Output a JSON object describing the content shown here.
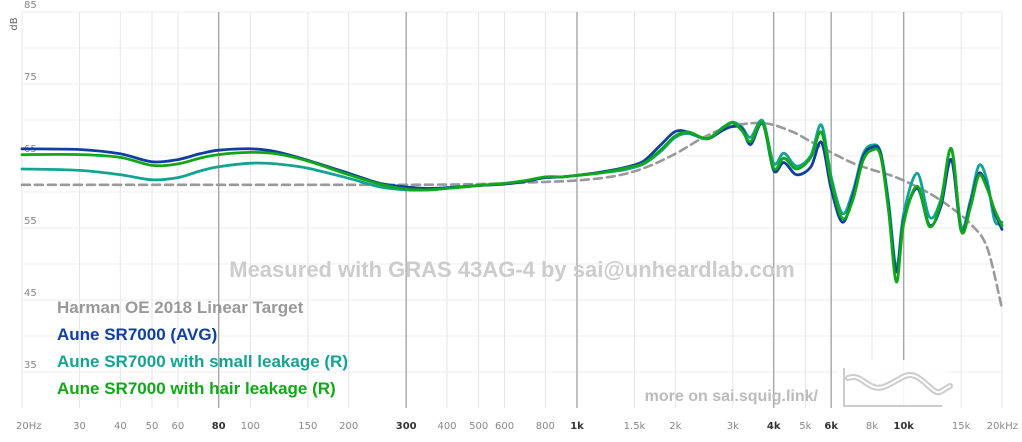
{
  "chart_data": {
    "type": "line",
    "title": "",
    "xlabel": "",
    "ylabel": "dB",
    "x_scale": "log",
    "xlim": [
      20,
      20000
    ],
    "ylim": [
      30,
      85
    ],
    "grid": true,
    "legend_placement": "bottom-left",
    "watermark": "Measured with GRAS 43AG-4 by sai@unheardlab.com",
    "footer": "more on sai.squig.link/",
    "logo_icon": "squiggle-logo-icon",
    "x_ticks": [
      {
        "value": 20,
        "label": "20Hz",
        "major": false
      },
      {
        "value": 30,
        "label": "30",
        "major": false
      },
      {
        "value": 40,
        "label": "40",
        "major": false
      },
      {
        "value": 50,
        "label": "50",
        "major": false
      },
      {
        "value": 60,
        "label": "60",
        "major": false
      },
      {
        "value": 80,
        "label": "80",
        "major": true
      },
      {
        "value": 100,
        "label": "100",
        "major": false
      },
      {
        "value": 150,
        "label": "150",
        "major": false
      },
      {
        "value": 200,
        "label": "200",
        "major": false
      },
      {
        "value": 300,
        "label": "300",
        "major": true
      },
      {
        "value": 400,
        "label": "400",
        "major": false
      },
      {
        "value": 500,
        "label": "500",
        "major": false
      },
      {
        "value": 600,
        "label": "600",
        "major": false
      },
      {
        "value": 800,
        "label": "800",
        "major": false
      },
      {
        "value": 1000,
        "label": "1k",
        "major": true
      },
      {
        "value": 1500,
        "label": "1.5k",
        "major": false
      },
      {
        "value": 2000,
        "label": "2k",
        "major": false
      },
      {
        "value": 3000,
        "label": "3k",
        "major": false
      },
      {
        "value": 4000,
        "label": "4k",
        "major": true
      },
      {
        "value": 5000,
        "label": "5k",
        "major": false
      },
      {
        "value": 6000,
        "label": "6k",
        "major": true
      },
      {
        "value": 8000,
        "label": "8k",
        "major": false
      },
      {
        "value": 10000,
        "label": "10k",
        "major": true
      },
      {
        "value": 15000,
        "label": "15k",
        "major": false
      },
      {
        "value": 20000,
        "label": "20kHz",
        "major": false
      }
    ],
    "y_ticks": [
      {
        "value": 85,
        "label": "85"
      },
      {
        "value": 75,
        "label": "75"
      },
      {
        "value": 65,
        "label": "65"
      },
      {
        "value": 55,
        "label": "55"
      },
      {
        "value": 45,
        "label": "45"
      },
      {
        "value": 35,
        "label": "35"
      }
    ],
    "series": [
      {
        "name": "Harman OE 2018 Linear Target",
        "color": "#999999",
        "dashed": true,
        "points": [
          [
            20,
            61
          ],
          [
            50,
            61
          ],
          [
            100,
            61
          ],
          [
            200,
            61
          ],
          [
            300,
            61
          ],
          [
            500,
            61.1
          ],
          [
            800,
            61.4
          ],
          [
            1000,
            61.6
          ],
          [
            1300,
            62.2
          ],
          [
            1600,
            63.3
          ],
          [
            2000,
            65.3
          ],
          [
            2400,
            67.4
          ],
          [
            2800,
            68.8
          ],
          [
            3200,
            69.4
          ],
          [
            3600,
            69.6
          ],
          [
            4000,
            69.3
          ],
          [
            4600,
            68.3
          ],
          [
            5200,
            67.0
          ],
          [
            6000,
            65.5
          ],
          [
            7000,
            64.0
          ],
          [
            8000,
            63.1
          ],
          [
            9000,
            62.4
          ],
          [
            10000,
            61.6
          ],
          [
            12000,
            59.8
          ],
          [
            14000,
            57.8
          ],
          [
            16000,
            55.6
          ],
          [
            18000,
            52.3
          ],
          [
            20000,
            43.8
          ]
        ]
      },
      {
        "name": "Aune SR7000 (AVG)",
        "color": "#0f3fa1",
        "dashed": false,
        "points": [
          [
            20,
            66.0
          ],
          [
            30,
            65.9
          ],
          [
            40,
            65.3
          ],
          [
            50,
            64.2
          ],
          [
            60,
            64.5
          ],
          [
            70,
            65.3
          ],
          [
            80,
            65.8
          ],
          [
            100,
            66.0
          ],
          [
            120,
            65.6
          ],
          [
            150,
            64.4
          ],
          [
            200,
            62.6
          ],
          [
            250,
            61.2
          ],
          [
            300,
            60.7
          ],
          [
            350,
            60.5
          ],
          [
            400,
            60.6
          ],
          [
            500,
            60.9
          ],
          [
            600,
            61.1
          ],
          [
            700,
            61.5
          ],
          [
            800,
            62.0
          ],
          [
            900,
            62.1
          ],
          [
            1000,
            62.3
          ],
          [
            1200,
            62.8
          ],
          [
            1400,
            63.4
          ],
          [
            1600,
            64.3
          ],
          [
            1800,
            66.5
          ],
          [
            2000,
            68.4
          ],
          [
            2200,
            68.3
          ],
          [
            2500,
            67.4
          ],
          [
            2800,
            68.6
          ],
          [
            3000,
            69.1
          ],
          [
            3200,
            68.8
          ],
          [
            3400,
            66.6
          ],
          [
            3700,
            69.5
          ],
          [
            4000,
            63.0
          ],
          [
            4300,
            64.1
          ],
          [
            4700,
            62.4
          ],
          [
            5200,
            63.5
          ],
          [
            5600,
            66.9
          ],
          [
            6000,
            60.4
          ],
          [
            6500,
            55.8
          ],
          [
            7000,
            59.6
          ],
          [
            7500,
            64.8
          ],
          [
            8000,
            66.2
          ],
          [
            8500,
            65.4
          ],
          [
            9000,
            57.8
          ],
          [
            9500,
            48.9
          ],
          [
            10000,
            56.0
          ],
          [
            11000,
            60.5
          ],
          [
            12000,
            55.4
          ],
          [
            13000,
            58.0
          ],
          [
            14000,
            64.5
          ],
          [
            15000,
            54.6
          ],
          [
            16000,
            58.3
          ],
          [
            17000,
            62.6
          ],
          [
            18000,
            60.7
          ],
          [
            19000,
            57.2
          ],
          [
            20000,
            54.8
          ]
        ]
      },
      {
        "name": "Aune SR7000 with small leakage (R)",
        "color": "#14a393",
        "dashed": false,
        "points": [
          [
            20,
            63.2
          ],
          [
            30,
            63.0
          ],
          [
            40,
            62.4
          ],
          [
            50,
            61.7
          ],
          [
            60,
            62.0
          ],
          [
            70,
            62.9
          ],
          [
            80,
            63.5
          ],
          [
            100,
            64.0
          ],
          [
            120,
            63.9
          ],
          [
            150,
            63.3
          ],
          [
            200,
            61.9
          ],
          [
            250,
            60.7
          ],
          [
            300,
            60.3
          ],
          [
            350,
            60.3
          ],
          [
            400,
            60.5
          ],
          [
            500,
            60.9
          ],
          [
            600,
            61.2
          ],
          [
            700,
            61.6
          ],
          [
            800,
            62.0
          ],
          [
            900,
            62.1
          ],
          [
            1000,
            62.3
          ],
          [
            1200,
            62.7
          ],
          [
            1400,
            63.1
          ],
          [
            1600,
            63.9
          ],
          [
            1800,
            65.6
          ],
          [
            2000,
            67.6
          ],
          [
            2200,
            68.1
          ],
          [
            2500,
            67.4
          ],
          [
            2800,
            69.0
          ],
          [
            3000,
            69.7
          ],
          [
            3200,
            69.0
          ],
          [
            3400,
            67.6
          ],
          [
            3700,
            69.9
          ],
          [
            4000,
            64.0
          ],
          [
            4300,
            65.4
          ],
          [
            4700,
            63.6
          ],
          [
            5200,
            65.1
          ],
          [
            5600,
            69.3
          ],
          [
            6000,
            62.1
          ],
          [
            6500,
            57.0
          ],
          [
            7000,
            60.2
          ],
          [
            7500,
            65.2
          ],
          [
            8000,
            66.5
          ],
          [
            8500,
            65.5
          ],
          [
            9000,
            58.5
          ],
          [
            9500,
            49.5
          ],
          [
            10000,
            57.0
          ],
          [
            11000,
            62.6
          ],
          [
            12000,
            56.5
          ],
          [
            13000,
            59.0
          ],
          [
            14000,
            66.0
          ],
          [
            15000,
            55.2
          ],
          [
            16000,
            58.8
          ],
          [
            17000,
            63.7
          ],
          [
            18000,
            61.6
          ],
          [
            19000,
            56.0
          ],
          [
            20000,
            55.8
          ]
        ]
      },
      {
        "name": "Aune SR7000 with hair leakage (R)",
        "color": "#11a818",
        "dashed": false,
        "points": [
          [
            20,
            65.2
          ],
          [
            30,
            65.2
          ],
          [
            40,
            64.8
          ],
          [
            50,
            63.7
          ],
          [
            60,
            63.9
          ],
          [
            70,
            64.7
          ],
          [
            80,
            65.2
          ],
          [
            100,
            65.5
          ],
          [
            120,
            65.3
          ],
          [
            150,
            64.3
          ],
          [
            200,
            62.4
          ],
          [
            250,
            61.1
          ],
          [
            300,
            60.4
          ],
          [
            350,
            60.3
          ],
          [
            400,
            60.5
          ],
          [
            500,
            60.9
          ],
          [
            600,
            61.2
          ],
          [
            700,
            61.6
          ],
          [
            800,
            62.1
          ],
          [
            900,
            62.1
          ],
          [
            1000,
            62.3
          ],
          [
            1200,
            62.7
          ],
          [
            1400,
            63.3
          ],
          [
            1600,
            64.0
          ],
          [
            1800,
            65.8
          ],
          [
            2000,
            67.8
          ],
          [
            2200,
            68.3
          ],
          [
            2500,
            67.4
          ],
          [
            2800,
            68.9
          ],
          [
            3000,
            69.6
          ],
          [
            3200,
            68.5
          ],
          [
            3400,
            67.0
          ],
          [
            3700,
            69.6
          ],
          [
            4000,
            63.3
          ],
          [
            4300,
            64.7
          ],
          [
            4700,
            63.2
          ],
          [
            5200,
            64.8
          ],
          [
            5600,
            68.3
          ],
          [
            6000,
            61.5
          ],
          [
            6500,
            56.3
          ],
          [
            7000,
            59.0
          ],
          [
            7500,
            64.3
          ],
          [
            8000,
            65.8
          ],
          [
            8500,
            65.0
          ],
          [
            9000,
            57.2
          ],
          [
            9500,
            47.5
          ],
          [
            10000,
            55.6
          ],
          [
            11000,
            60.8
          ],
          [
            12000,
            55.2
          ],
          [
            13000,
            58.6
          ],
          [
            14000,
            66.0
          ],
          [
            15000,
            54.6
          ],
          [
            16000,
            57.8
          ],
          [
            17000,
            62.3
          ],
          [
            18000,
            60.5
          ],
          [
            19000,
            57.5
          ],
          [
            20000,
            55.3
          ]
        ]
      }
    ]
  }
}
